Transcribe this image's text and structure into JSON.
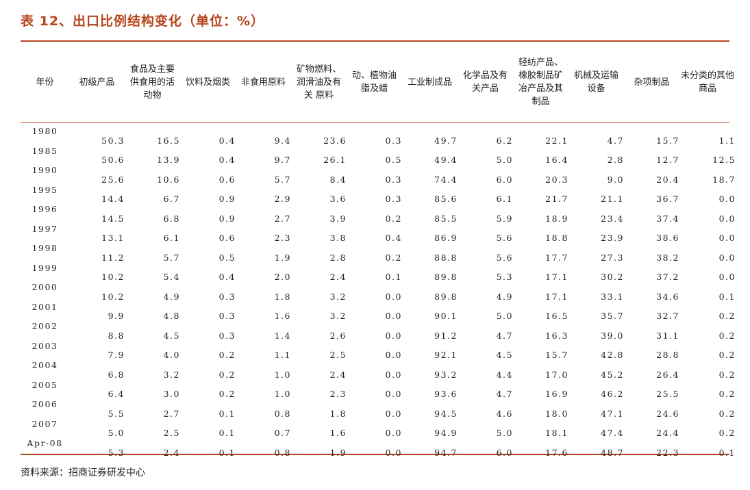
{
  "title": "表 12、出口比例结构变化（单位：%）",
  "columns": [
    "年份",
    "初级产品",
    "食品及主要供食用的活动物",
    "饮料及烟类",
    "非食用原料",
    "矿物燃料、润滑油及有关 原料",
    "动、植物油脂及蜡",
    "工业制成品",
    "化学品及有关产品",
    "轻纺产品、橡胶制品矿冶产品及其制品",
    "机械及运输设备",
    "杂项制品",
    "未分类的其他商品"
  ],
  "rows": [
    [
      "1980",
      "50.3",
      "16.5",
      "0.4",
      "9.4",
      "23.6",
      "0.3",
      "49.7",
      "6.2",
      "22.1",
      "4.7",
      "15.7",
      "1.1"
    ],
    [
      "1985",
      "50.6",
      "13.9",
      "0.4",
      "9.7",
      "26.1",
      "0.5",
      "49.4",
      "5.0",
      "16.4",
      "2.8",
      "12.7",
      "12.5"
    ],
    [
      "1990",
      "25.6",
      "10.6",
      "0.6",
      "5.7",
      "8.4",
      "0.3",
      "74.4",
      "6.0",
      "20.3",
      "9.0",
      "20.4",
      "18.7"
    ],
    [
      "1995",
      "14.4",
      "6.7",
      "0.9",
      "2.9",
      "3.6",
      "0.3",
      "85.6",
      "6.1",
      "21.7",
      "21.1",
      "36.7",
      "0.0"
    ],
    [
      "1996",
      "14.5",
      "6.8",
      "0.9",
      "2.7",
      "3.9",
      "0.2",
      "85.5",
      "5.9",
      "18.9",
      "23.4",
      "37.4",
      "0.0"
    ],
    [
      "1997",
      "13.1",
      "6.1",
      "0.6",
      "2.3",
      "3.8",
      "0.4",
      "86.9",
      "5.6",
      "18.8",
      "23.9",
      "38.6",
      "0.0"
    ],
    [
      "1998",
      "11.2",
      "5.7",
      "0.5",
      "1.9",
      "2.8",
      "0.2",
      "88.8",
      "5.6",
      "17.7",
      "27.3",
      "38.2",
      "0.0"
    ],
    [
      "1999",
      "10.2",
      "5.4",
      "0.4",
      "2.0",
      "2.4",
      "0.1",
      "89.8",
      "5.3",
      "17.1",
      "30.2",
      "37.2",
      "0.0"
    ],
    [
      "2000",
      "10.2",
      "4.9",
      "0.3",
      "1.8",
      "3.2",
      "0.0",
      "89.8",
      "4.9",
      "17.1",
      "33.1",
      "34.6",
      "0.1"
    ],
    [
      "2001",
      "9.9",
      "4.8",
      "0.3",
      "1.6",
      "3.2",
      "0.0",
      "90.1",
      "5.0",
      "16.5",
      "35.7",
      "32.7",
      "0.2"
    ],
    [
      "2002",
      "8.8",
      "4.5",
      "0.3",
      "1.4",
      "2.6",
      "0.0",
      "91.2",
      "4.7",
      "16.3",
      "39.0",
      "31.1",
      "0.2"
    ],
    [
      "2003",
      "7.9",
      "4.0",
      "0.2",
      "1.1",
      "2.5",
      "0.0",
      "92.1",
      "4.5",
      "15.7",
      "42.8",
      "28.8",
      "0.2"
    ],
    [
      "2004",
      "6.8",
      "3.2",
      "0.2",
      "1.0",
      "2.4",
      "0.0",
      "93.2",
      "4.4",
      "17.0",
      "45.2",
      "26.4",
      "0.2"
    ],
    [
      "2005",
      "6.4",
      "3.0",
      "0.2",
      "1.0",
      "2.3",
      "0.0",
      "93.6",
      "4.7",
      "16.9",
      "46.2",
      "25.5",
      "0.2"
    ],
    [
      "2006",
      "5.5",
      "2.7",
      "0.1",
      "0.8",
      "1.8",
      "0.0",
      "94.5",
      "4.6",
      "18.0",
      "47.1",
      "24.6",
      "0.2"
    ],
    [
      "2007",
      "5.0",
      "2.5",
      "0.1",
      "0.7",
      "1.6",
      "0.0",
      "94.9",
      "5.0",
      "18.1",
      "47.4",
      "24.4",
      "0.2"
    ],
    [
      "Apr-08",
      "5.3",
      "2.4",
      "0.1",
      "0.8",
      "1.9",
      "0.0",
      "94.7",
      "6.0",
      "17.6",
      "48.7",
      "22.3",
      "0.1"
    ]
  ],
  "source": "资料来源：招商证券研发中心",
  "colors": {
    "accent": "#b5451b",
    "text": "#222222"
  }
}
